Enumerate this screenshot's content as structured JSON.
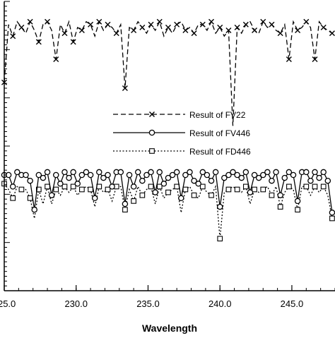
{
  "chart_data": {
    "type": "line",
    "title": "",
    "xlabel": "Wavelength",
    "ylabel": "",
    "xlim": [
      225.0,
      248.0
    ],
    "ylim": [
      0,
      1
    ],
    "x_ticks": [
      225.0,
      230.0,
      235.0,
      240.0,
      245.0
    ],
    "x_tick_labels": [
      "225.0",
      "230.0",
      "235.0",
      "240.0",
      "245.0"
    ],
    "grid": false,
    "legend_position": "center",
    "legend": [
      {
        "label": "Result of FV22",
        "line": "dashed",
        "marker": "x"
      },
      {
        "label": "Result of FV446",
        "line": "solid",
        "marker": "circle"
      },
      {
        "label": "Result of FD446",
        "line": "dotted",
        "marker": "square"
      }
    ],
    "series": [
      {
        "name": "Result of FV22",
        "line": "dashed",
        "marker": "x",
        "x": [
          225.0,
          225.3,
          225.6,
          225.9,
          226.2,
          226.5,
          226.8,
          227.1,
          227.4,
          227.7,
          228.0,
          228.3,
          228.6,
          228.9,
          229.2,
          229.5,
          229.8,
          230.1,
          230.4,
          230.7,
          231.0,
          231.3,
          231.6,
          231.9,
          232.2,
          232.5,
          232.8,
          233.1,
          233.4,
          233.7,
          234.0,
          234.3,
          234.6,
          234.9,
          235.2,
          235.5,
          235.8,
          236.1,
          236.4,
          236.7,
          237.0,
          237.3,
          237.6,
          237.9,
          238.2,
          238.5,
          238.8,
          239.1,
          239.4,
          239.7,
          240.0,
          240.3,
          240.6,
          240.9,
          241.2,
          241.5,
          241.8,
          242.1,
          242.4,
          242.7,
          243.0,
          243.3,
          243.6,
          243.9,
          244.2,
          244.5,
          244.8,
          245.1,
          245.4,
          245.7,
          246.0,
          246.3,
          246.6,
          246.9,
          247.2,
          247.5,
          247.8
        ],
        "y": [
          0.72,
          0.92,
          0.88,
          0.93,
          0.91,
          0.89,
          0.93,
          0.9,
          0.86,
          0.92,
          0.93,
          0.9,
          0.8,
          0.92,
          0.89,
          0.93,
          0.86,
          0.91,
          0.9,
          0.93,
          0.92,
          0.88,
          0.93,
          0.9,
          0.92,
          0.91,
          0.89,
          0.92,
          0.7,
          0.91,
          0.9,
          0.93,
          0.91,
          0.89,
          0.92,
          0.9,
          0.93,
          0.88,
          0.91,
          0.89,
          0.92,
          0.93,
          0.9,
          0.91,
          0.89,
          0.92,
          0.92,
          0.9,
          0.93,
          0.89,
          0.91,
          0.88,
          0.9,
          0.57,
          0.91,
          0.89,
          0.92,
          0.93,
          0.9,
          0.89,
          0.93,
          0.91,
          0.92,
          0.9,
          0.89,
          0.92,
          0.8,
          0.93,
          0.9,
          0.91,
          0.93,
          0.91,
          0.8,
          0.93,
          0.91,
          0.9,
          0.89
        ]
      },
      {
        "name": "Result of FV446",
        "line": "solid",
        "marker": "circle",
        "x": [
          225.0,
          225.3,
          225.6,
          225.9,
          226.2,
          226.5,
          226.8,
          227.1,
          227.4,
          227.7,
          228.0,
          228.3,
          228.6,
          228.9,
          229.2,
          229.5,
          229.8,
          230.1,
          230.4,
          230.7,
          231.0,
          231.3,
          231.6,
          231.9,
          232.2,
          232.5,
          232.8,
          233.1,
          233.4,
          233.7,
          234.0,
          234.3,
          234.6,
          234.9,
          235.2,
          235.5,
          235.8,
          236.1,
          236.4,
          236.7,
          237.0,
          237.3,
          237.6,
          237.9,
          238.2,
          238.5,
          238.8,
          239.1,
          239.4,
          239.7,
          240.0,
          240.3,
          240.6,
          240.9,
          241.2,
          241.5,
          241.8,
          242.1,
          242.4,
          242.7,
          243.0,
          243.3,
          243.6,
          243.9,
          244.2,
          244.5,
          244.8,
          245.1,
          245.4,
          245.7,
          246.0,
          246.3,
          246.6,
          246.9,
          247.2,
          247.5,
          247.8
        ],
        "y": [
          0.4,
          0.4,
          0.36,
          0.41,
          0.4,
          0.4,
          0.38,
          0.28,
          0.4,
          0.39,
          0.41,
          0.33,
          0.4,
          0.37,
          0.41,
          0.39,
          0.41,
          0.37,
          0.4,
          0.41,
          0.4,
          0.32,
          0.41,
          0.39,
          0.4,
          0.36,
          0.41,
          0.41,
          0.3,
          0.4,
          0.36,
          0.41,
          0.38,
          0.4,
          0.41,
          0.34,
          0.41,
          0.37,
          0.39,
          0.4,
          0.41,
          0.32,
          0.4,
          0.41,
          0.38,
          0.37,
          0.41,
          0.4,
          0.38,
          0.41,
          0.29,
          0.39,
          0.4,
          0.41,
          0.4,
          0.39,
          0.41,
          0.34,
          0.4,
          0.39,
          0.4,
          0.41,
          0.38,
          0.41,
          0.33,
          0.39,
          0.41,
          0.4,
          0.31,
          0.41,
          0.41,
          0.38,
          0.41,
          0.39,
          0.41,
          0.38,
          0.27
        ]
      },
      {
        "name": "Result of FD446",
        "line": "dotted",
        "marker": "square",
        "x": [
          225.0,
          225.3,
          225.6,
          225.9,
          226.2,
          226.5,
          226.8,
          227.1,
          227.4,
          227.7,
          228.0,
          228.3,
          228.6,
          228.9,
          229.2,
          229.5,
          229.8,
          230.1,
          230.4,
          230.7,
          231.0,
          231.3,
          231.6,
          231.9,
          232.2,
          232.5,
          232.8,
          233.1,
          233.4,
          233.7,
          234.0,
          234.3,
          234.6,
          234.9,
          235.2,
          235.5,
          235.8,
          236.1,
          236.4,
          236.7,
          237.0,
          237.3,
          237.6,
          237.9,
          238.2,
          238.5,
          238.8,
          239.1,
          239.4,
          239.7,
          240.0,
          240.3,
          240.6,
          240.9,
          241.2,
          241.5,
          241.8,
          242.1,
          242.4,
          242.7,
          243.0,
          243.3,
          243.6,
          243.9,
          244.2,
          244.5,
          244.8,
          245.1,
          245.4,
          245.7,
          246.0,
          246.3,
          246.6,
          246.9,
          247.2,
          247.5,
          247.8
        ],
        "y": [
          0.37,
          0.35,
          0.32,
          0.36,
          0.35,
          0.35,
          0.32,
          0.25,
          0.35,
          0.3,
          0.36,
          0.3,
          0.35,
          0.33,
          0.36,
          0.34,
          0.36,
          0.33,
          0.35,
          0.36,
          0.35,
          0.29,
          0.36,
          0.34,
          0.35,
          0.31,
          0.36,
          0.36,
          0.28,
          0.35,
          0.31,
          0.36,
          0.33,
          0.35,
          0.36,
          0.3,
          0.36,
          0.32,
          0.34,
          0.35,
          0.36,
          0.27,
          0.35,
          0.36,
          0.33,
          0.32,
          0.36,
          0.34,
          0.33,
          0.36,
          0.18,
          0.34,
          0.35,
          0.36,
          0.35,
          0.34,
          0.36,
          0.3,
          0.35,
          0.34,
          0.35,
          0.36,
          0.33,
          0.36,
          0.29,
          0.34,
          0.36,
          0.35,
          0.28,
          0.36,
          0.36,
          0.33,
          0.36,
          0.34,
          0.36,
          0.33,
          0.25
        ]
      }
    ]
  }
}
